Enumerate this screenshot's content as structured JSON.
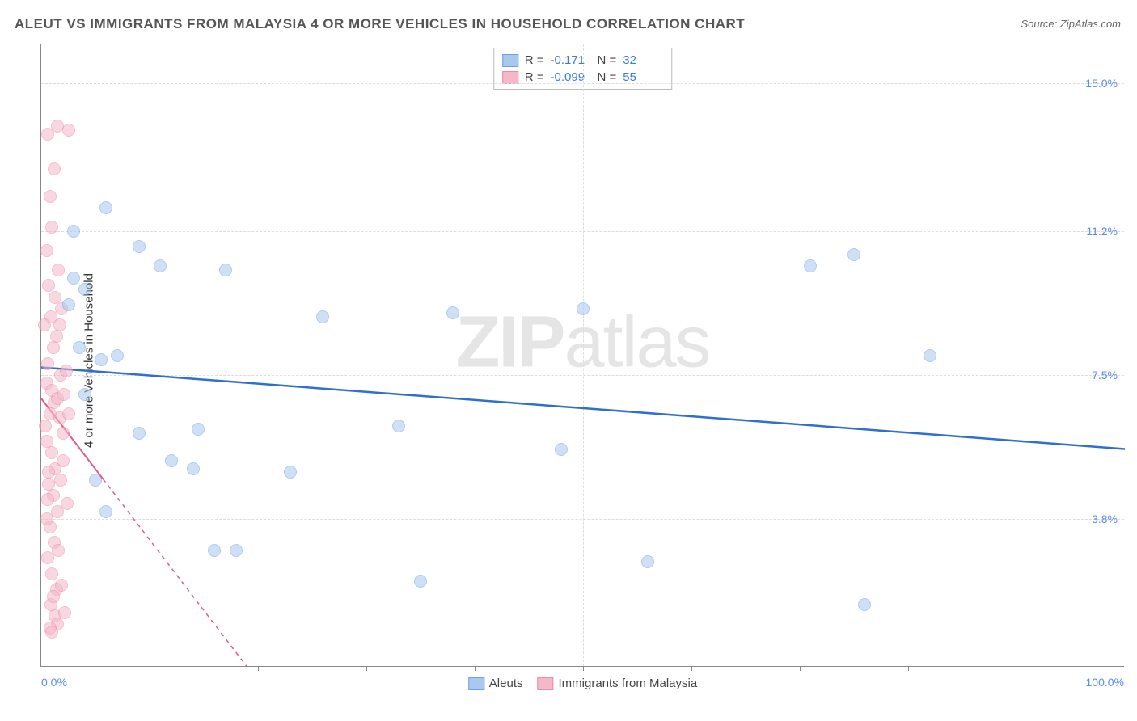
{
  "title": "ALEUT VS IMMIGRANTS FROM MALAYSIA 4 OR MORE VEHICLES IN HOUSEHOLD CORRELATION CHART",
  "source": "Source: ZipAtlas.com",
  "ylabel": "4 or more Vehicles in Household",
  "watermark_a": "ZIP",
  "watermark_b": "atlas",
  "chart": {
    "type": "scatter",
    "xlim": [
      0,
      100
    ],
    "ylim": [
      0,
      16
    ],
    "background_color": "#ffffff",
    "grid_color": "#dddddd",
    "axis_color": "#888888",
    "marker_radius": 8,
    "marker_opacity": 0.55,
    "yticks": [
      {
        "v": 3.8,
        "label": "3.8%"
      },
      {
        "v": 7.5,
        "label": "7.5%"
      },
      {
        "v": 11.2,
        "label": "11.2%"
      },
      {
        "v": 15.0,
        "label": "15.0%"
      }
    ],
    "xticks_minor": [
      10,
      20,
      30,
      40,
      50,
      60,
      70,
      80,
      90
    ],
    "xtick_labels": [
      {
        "v": 0,
        "label": "0.0%",
        "align": "left"
      },
      {
        "v": 100,
        "label": "100.0%",
        "align": "right"
      }
    ],
    "series": [
      {
        "name": "Aleuts",
        "color_fill": "#a9c7ef",
        "color_stroke": "#6ea2e0",
        "R": "-0.171",
        "N": "32",
        "trend": {
          "x1": 0,
          "y1": 7.7,
          "x2": 100,
          "y2": 5.6,
          "color": "#2f6fd0",
          "width": 2.5,
          "dash": "none"
        },
        "points": [
          [
            6,
            11.8
          ],
          [
            3,
            11.2
          ],
          [
            5.5,
            7.9
          ],
          [
            3,
            10.0
          ],
          [
            9,
            10.8
          ],
          [
            11,
            10.3
          ],
          [
            17,
            10.2
          ],
          [
            26,
            9.0
          ],
          [
            38,
            9.1
          ],
          [
            50,
            9.2
          ],
          [
            7,
            8.0
          ],
          [
            3.5,
            8.2
          ],
          [
            9,
            6.0
          ],
          [
            12,
            5.3
          ],
          [
            14,
            5.1
          ],
          [
            14.5,
            6.1
          ],
          [
            23,
            5.0
          ],
          [
            33,
            6.2
          ],
          [
            48,
            5.6
          ],
          [
            16,
            3.0
          ],
          [
            18,
            3.0
          ],
          [
            35,
            2.2
          ],
          [
            56,
            2.7
          ],
          [
            76,
            1.6
          ],
          [
            71,
            10.3
          ],
          [
            75,
            10.6
          ],
          [
            82,
            8.0
          ],
          [
            5,
            4.8
          ],
          [
            6,
            4.0
          ],
          [
            4,
            7.0
          ],
          [
            2.5,
            9.3
          ],
          [
            4,
            9.7
          ]
        ]
      },
      {
        "name": "Immigrants from Malaysia",
        "color_fill": "#f5b8c9",
        "color_stroke": "#ec8aa8",
        "R": "-0.099",
        "N": "55",
        "trend": {
          "x1": 0,
          "y1": 6.9,
          "x2": 19,
          "y2": 0,
          "color": "#e05a8a",
          "width": 1.5,
          "dash": "5,5",
          "solid_portion": 0.3
        },
        "points": [
          [
            0.5,
            7.3
          ],
          [
            1.0,
            7.1
          ],
          [
            1.2,
            6.8
          ],
          [
            0.8,
            6.5
          ],
          [
            1.5,
            6.9
          ],
          [
            1.8,
            7.5
          ],
          [
            0.6,
            7.8
          ],
          [
            1.1,
            8.2
          ],
          [
            1.4,
            8.5
          ],
          [
            0.9,
            9.0
          ],
          [
            1.3,
            9.5
          ],
          [
            0.7,
            9.8
          ],
          [
            1.6,
            10.2
          ],
          [
            0.5,
            10.7
          ],
          [
            1.0,
            11.3
          ],
          [
            0.8,
            12.1
          ],
          [
            1.2,
            12.8
          ],
          [
            0.6,
            13.7
          ],
          [
            1.5,
            13.9
          ],
          [
            2.5,
            13.8
          ],
          [
            0.5,
            5.8
          ],
          [
            1.0,
            5.5
          ],
          [
            1.3,
            5.1
          ],
          [
            0.7,
            4.7
          ],
          [
            1.1,
            4.4
          ],
          [
            1.5,
            4.0
          ],
          [
            0.8,
            3.6
          ],
          [
            1.2,
            3.2
          ],
          [
            0.6,
            2.8
          ],
          [
            1.0,
            2.4
          ],
          [
            1.4,
            2.0
          ],
          [
            0.9,
            1.6
          ],
          [
            1.3,
            1.3
          ],
          [
            0.7,
            5.0
          ],
          [
            1.8,
            4.8
          ],
          [
            2.0,
            5.3
          ],
          [
            1.6,
            3.0
          ],
          [
            1.9,
            2.1
          ],
          [
            2.2,
            1.4
          ],
          [
            0.4,
            6.2
          ],
          [
            1.7,
            6.4
          ],
          [
            2.1,
            7.0
          ],
          [
            2.3,
            7.6
          ],
          [
            0.3,
            8.8
          ],
          [
            1.9,
            9.2
          ],
          [
            2.4,
            4.2
          ],
          [
            0.5,
            3.8
          ],
          [
            1.1,
            1.8
          ],
          [
            1.5,
            1.1
          ],
          [
            0.8,
            1.0
          ],
          [
            2.0,
            6.0
          ],
          [
            2.5,
            6.5
          ],
          [
            1.0,
            0.9
          ],
          [
            0.6,
            4.3
          ],
          [
            1.7,
            8.8
          ]
        ]
      }
    ]
  },
  "legend_top_labels": {
    "R": "R =",
    "N": "N ="
  },
  "legend_bottom": [
    {
      "label": "Aleuts",
      "fill": "#a9c7ef",
      "stroke": "#6ea2e0"
    },
    {
      "label": "Immigrants from Malaysia",
      "fill": "#f5b8c9",
      "stroke": "#ec8aa8"
    }
  ]
}
